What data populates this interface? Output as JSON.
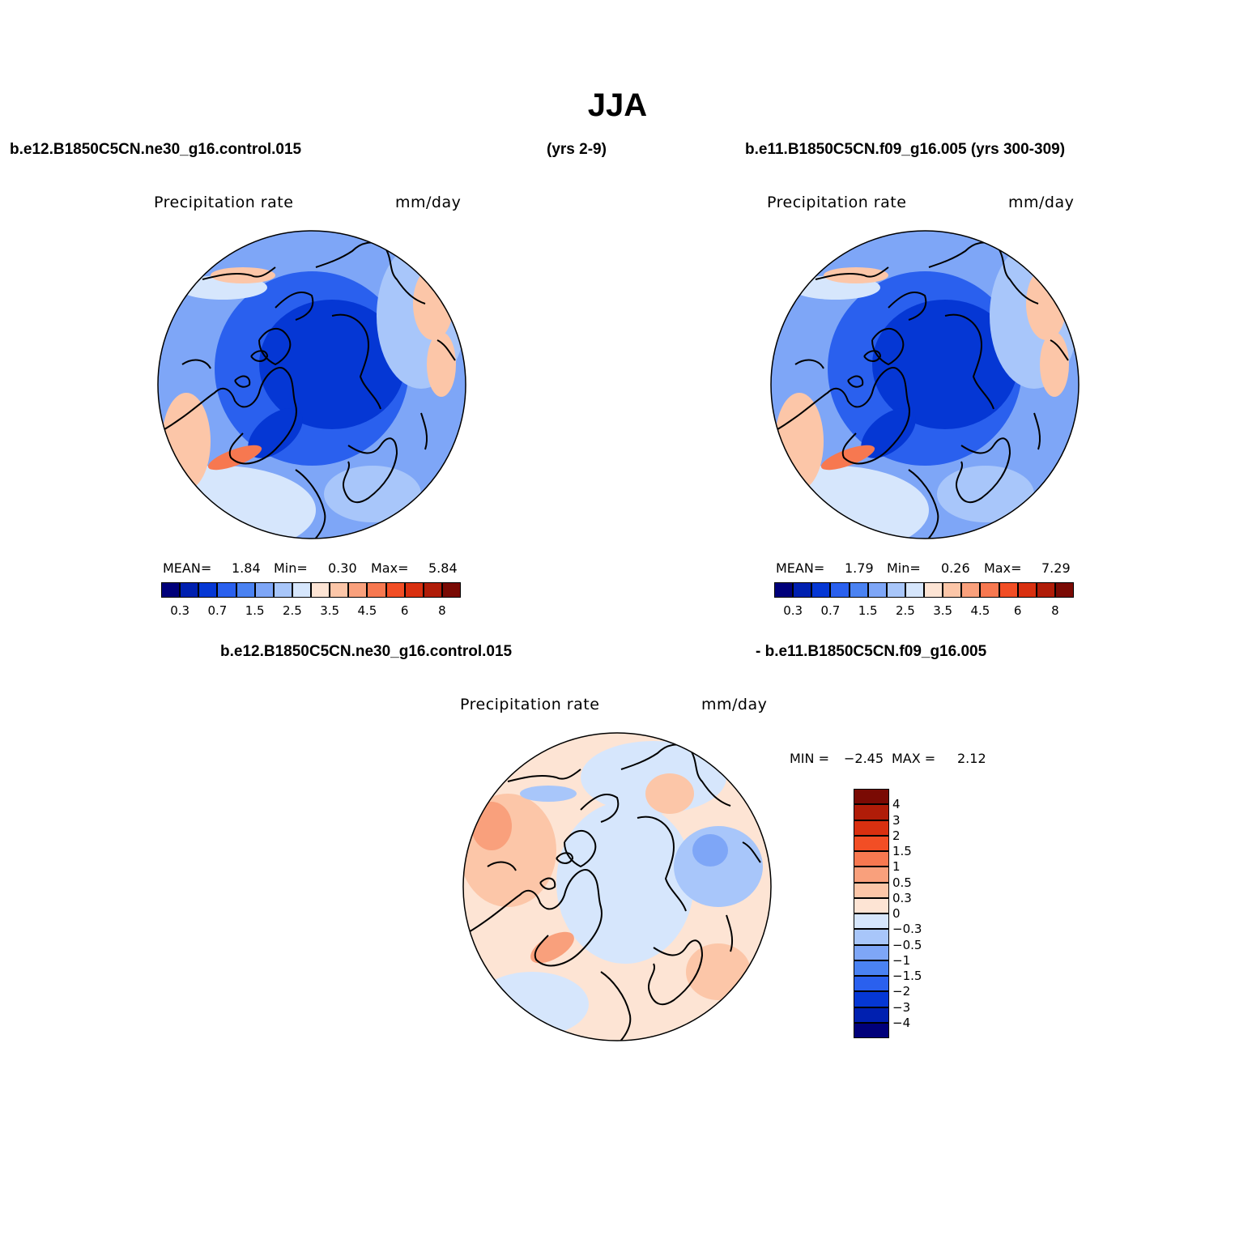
{
  "title": "JJA",
  "panels": [
    {
      "case_left": "b.e12.B1850C5CN.ne30_g16.control.015",
      "case_right": "(yrs 2-9)",
      "variable": "Precipitation rate",
      "units": "mm/day",
      "stats": {
        "mean_label": "MEAN=",
        "mean": "1.84",
        "min_label": "Min=",
        "min": "0.30",
        "max_label": "Max=",
        "max": "5.84"
      }
    },
    {
      "case_left": "b.e11.B1850C5CN.f09_g16.005 (yrs 300-309)",
      "variable": "Precipitation rate",
      "units": "mm/day",
      "stats": {
        "mean_label": "MEAN=",
        "mean": "1.79",
        "min_label": "Min=",
        "min": "0.26",
        "max_label": "Max=",
        "max": "7.29"
      }
    },
    {
      "case_left": "b.e12.B1850C5CN.ne30_g16.control.015",
      "case_right": "- b.e11.B1850C5CN.f09_g16.005",
      "variable": "Precipitation rate",
      "units": "mm/day",
      "stats": {
        "min_label": "MIN =",
        "min": "−2.45",
        "max_label": "MAX =",
        "max": "2.12"
      }
    }
  ],
  "colorbar_abs": {
    "colors": [
      "#00007a",
      "#0020b0",
      "#0537d4",
      "#2a60ee",
      "#4a82f2",
      "#7ea6f7",
      "#a8c6fa",
      "#d6e6fc",
      "#fde4d4",
      "#fcc6a8",
      "#f9a07c",
      "#f77850",
      "#f24e25",
      "#d93010",
      "#b01c08",
      "#7a0a04"
    ],
    "labels": [
      "0.3",
      "0.7",
      "1.5",
      "2.5",
      "3.5",
      "4.5",
      "6",
      "8"
    ]
  },
  "colorbar_diff": {
    "colors": [
      "#7a0a04",
      "#b01c08",
      "#d93010",
      "#f24e25",
      "#f77850",
      "#f9a07c",
      "#fcc6a8",
      "#fde4d4",
      "#d6e6fc",
      "#a8c6fa",
      "#7ea6f7",
      "#4a82f2",
      "#2a60ee",
      "#0537d4",
      "#0020b0",
      "#00007a"
    ],
    "labels": [
      "4",
      "3",
      "2",
      "1.5",
      "1",
      "0.5",
      "0.3",
      "0",
      "−0.3",
      "−0.5",
      "−1",
      "−1.5",
      "−2",
      "−3",
      "−4"
    ]
  },
  "map_colors": {
    "abs_base": "#7ea6f7",
    "abs_dark": "#2a60ee",
    "abs_darker": "#0537d4",
    "abs_light": "#a8c6fa",
    "abs_pale": "#d6e6fc",
    "abs_warm": "#fcc6a8",
    "abs_hot": "#f77850",
    "diff_base": "#fde4d4",
    "diff_warm": "#fcc6a8",
    "diff_hot": "#f9a07c",
    "diff_cool": "#d6e6fc",
    "diff_blue": "#a8c6fa",
    "diff_deep": "#7ea6f7"
  }
}
